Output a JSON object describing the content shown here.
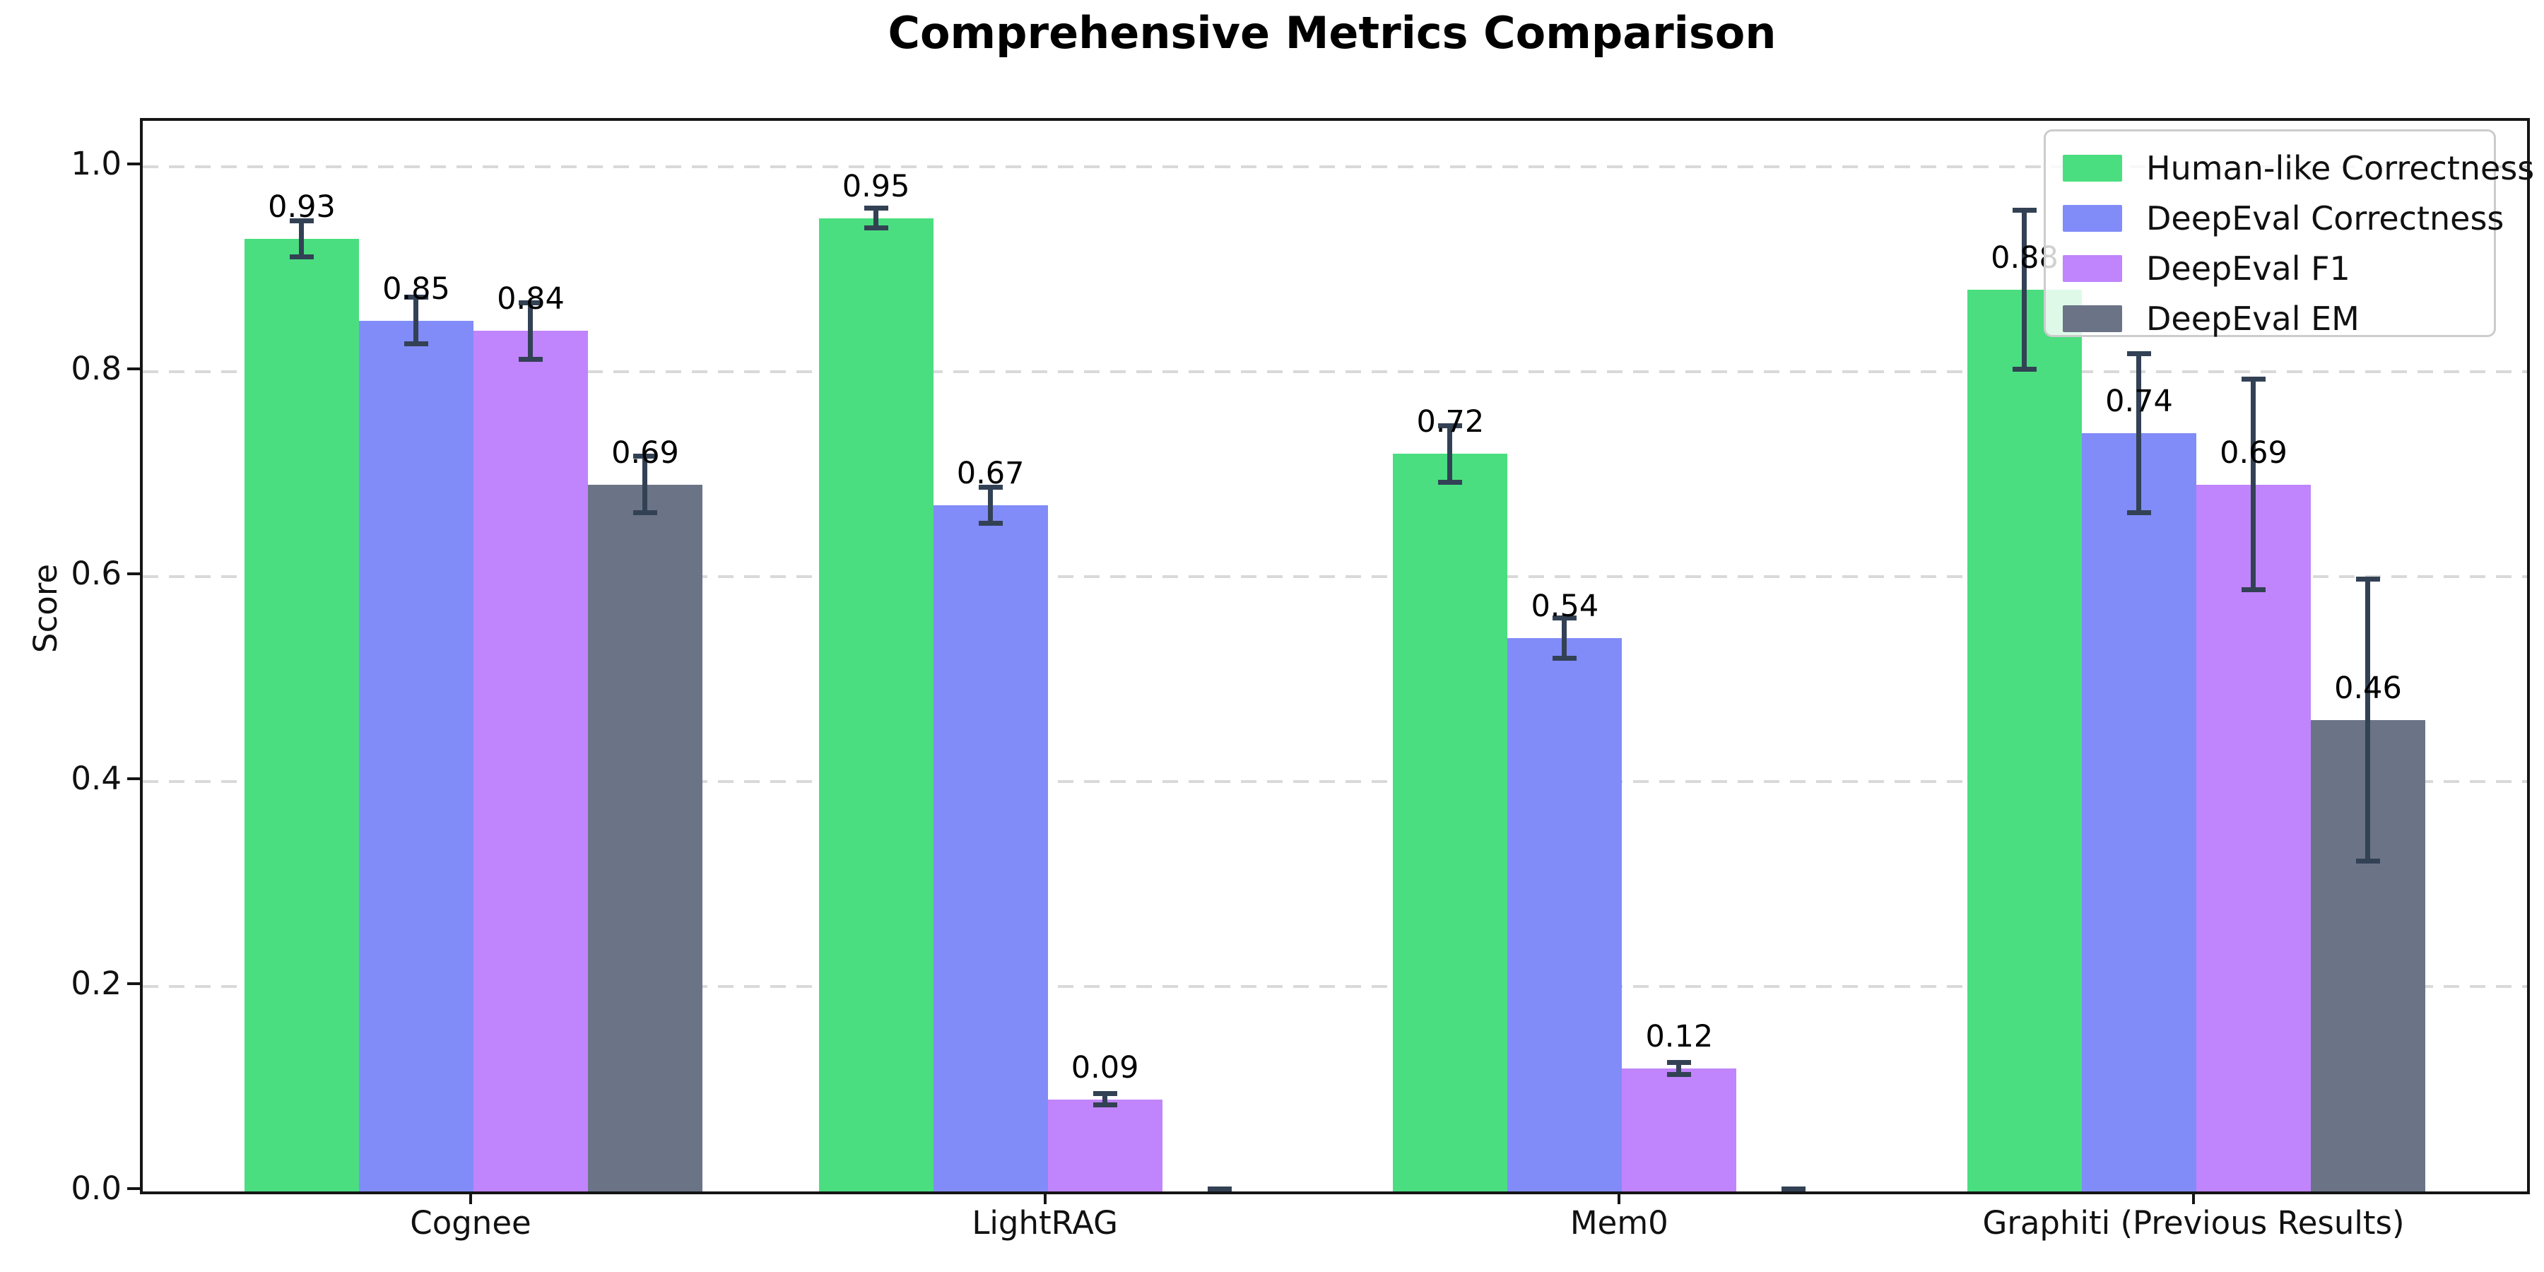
{
  "chart_data": {
    "type": "bar",
    "title": "Comprehensive Metrics Comparison",
    "xlabel": "",
    "ylabel": "Score",
    "ylim": [
      0,
      1.045
    ],
    "grid": {
      "axis": "y",
      "style": "dashed",
      "color": "#d9d9d9"
    },
    "legend_position": "upper right",
    "yticks": [
      {
        "value": 0.0,
        "label": "0.0"
      },
      {
        "value": 0.2,
        "label": "0.2"
      },
      {
        "value": 0.4,
        "label": "0.4"
      },
      {
        "value": 0.6,
        "label": "0.6"
      },
      {
        "value": 0.8,
        "label": "0.8"
      },
      {
        "value": 1.0,
        "label": "1.0"
      }
    ],
    "categories": [
      "Cognee",
      "LightRAG",
      "Mem0",
      "Graphiti (Previous Results)"
    ],
    "series": [
      {
        "name": "Human-like Correctness",
        "color": "#4ade80",
        "values": [
          0.93,
          0.95,
          0.72,
          0.88
        ],
        "errors": [
          0.02,
          0.012,
          0.03,
          0.08
        ],
        "labels": [
          "0.93",
          "0.95",
          "0.72",
          "0.88"
        ]
      },
      {
        "name": "DeepEval Correctness",
        "color": "#818cf8",
        "values": [
          0.85,
          0.67,
          0.54,
          0.74
        ],
        "errors": [
          0.025,
          0.02,
          0.022,
          0.08
        ],
        "labels": [
          "0.85",
          "0.67",
          "0.54",
          "0.74"
        ]
      },
      {
        "name": "DeepEval F1",
        "color": "#c084fc",
        "values": [
          0.84,
          0.09,
          0.12,
          0.69
        ],
        "errors": [
          0.03,
          0.008,
          0.008,
          0.105
        ],
        "labels": [
          "0.84",
          "0.09",
          "0.12",
          "0.69"
        ]
      },
      {
        "name": "DeepEval EM",
        "color": "#6b7486",
        "values": [
          0.69,
          0.0,
          0.0,
          0.46
        ],
        "errors": [
          0.03,
          0.005,
          0.005,
          0.14
        ],
        "labels": [
          "0.69",
          "",
          "",
          "0.46"
        ]
      }
    ],
    "error_bar_color": "#334155"
  }
}
